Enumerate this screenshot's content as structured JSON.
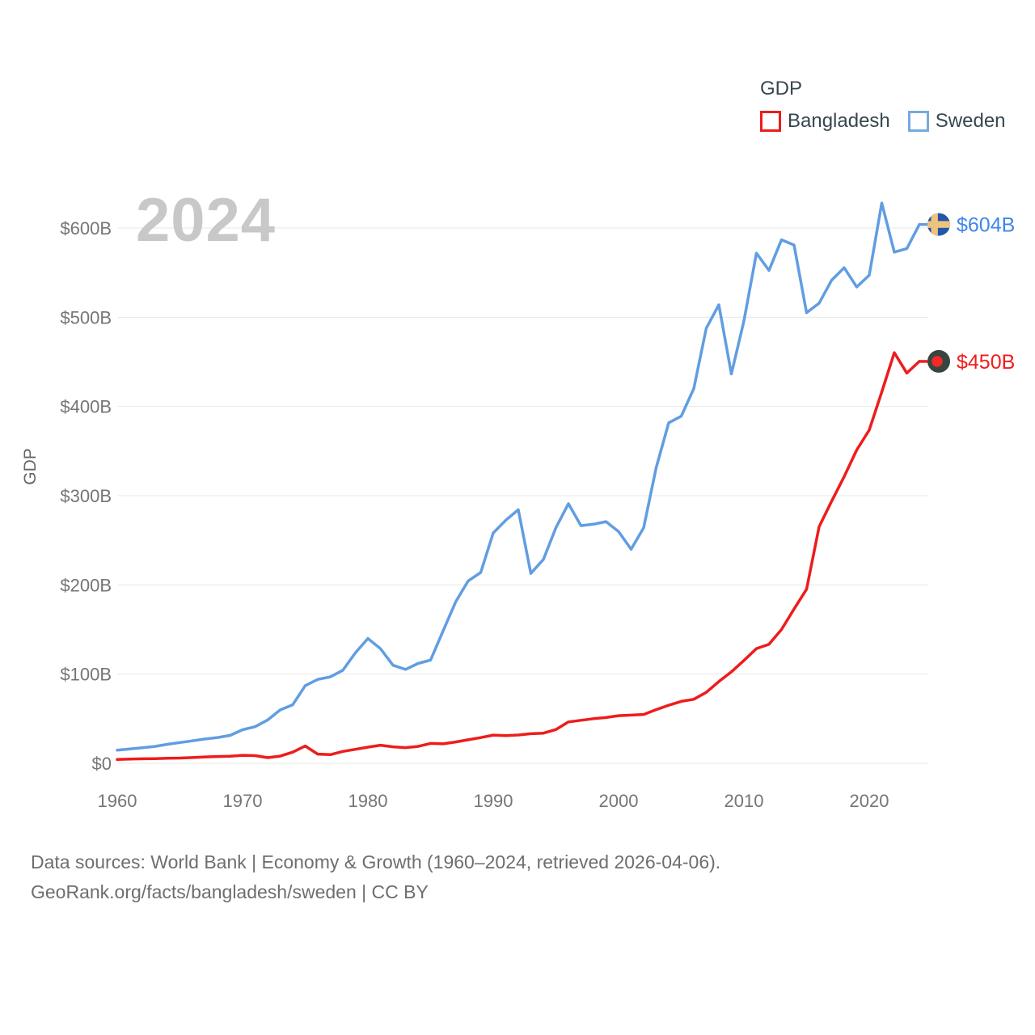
{
  "legend": {
    "title": "GDP",
    "items": [
      {
        "label": "Bangladesh",
        "color": "#ee1c1c"
      },
      {
        "label": "Sweden",
        "color": "#77a9e0"
      }
    ]
  },
  "watermark": "2024",
  "axis": {
    "y_title": "GDP",
    "y_ticks": [
      "$0",
      "$100B",
      "$200B",
      "$300B",
      "$400B",
      "$500B",
      "$600B"
    ],
    "x_ticks": [
      "1960",
      "1970",
      "1980",
      "1990",
      "2000",
      "2010",
      "2020"
    ]
  },
  "end_labels": {
    "sweden": {
      "label": "$604B",
      "color": "#3e86e8",
      "flag": "sweden-flag-icon"
    },
    "bangladesh": {
      "label": "$450B",
      "color": "#f21c1c",
      "flag": "bangladesh-flag-icon"
    }
  },
  "footer": {
    "line1": "Data sources: World Bank | Economy & Growth (1960–2024, retrieved 2026-04-06).",
    "line2": "GeoRank.org/facts/bangladesh/sweden | CC BY"
  },
  "chart_data": {
    "type": "line",
    "title": "GDP",
    "xlabel": "",
    "ylabel": "GDP",
    "grid": "horizontal",
    "legend_position": "top-right",
    "ylim": [
      0,
      640
    ],
    "y_tick_values": [
      0,
      100,
      200,
      300,
      400,
      500,
      600
    ],
    "x_tick_values": [
      1960,
      1970,
      1980,
      1990,
      2000,
      2010,
      2020
    ],
    "x": [
      1960,
      1961,
      1962,
      1963,
      1964,
      1965,
      1966,
      1967,
      1968,
      1969,
      1970,
      1971,
      1972,
      1973,
      1974,
      1975,
      1976,
      1977,
      1978,
      1979,
      1980,
      1981,
      1982,
      1983,
      1984,
      1985,
      1986,
      1987,
      1988,
      1989,
      1990,
      1991,
      1992,
      1993,
      1994,
      1995,
      1996,
      1997,
      1998,
      1999,
      2000,
      2001,
      2002,
      2003,
      2004,
      2005,
      2006,
      2007,
      2008,
      2009,
      2010,
      2011,
      2012,
      2013,
      2014,
      2015,
      2016,
      2017,
      2018,
      2019,
      2020,
      2021,
      2022,
      2023,
      2024
    ],
    "series": [
      {
        "name": "Bangladesh",
        "unit": "USD billions",
        "color": "#ee1c1c",
        "label_color": "#f21c1c",
        "values": [
          4.3,
          4.8,
          5.1,
          5.3,
          5.7,
          5.9,
          6.4,
          7.2,
          7.6,
          8.0,
          9.0,
          8.6,
          6.3,
          8.1,
          12.5,
          19.4,
          10.3,
          9.7,
          13.3,
          15.7,
          18.1,
          20.3,
          18.5,
          17.6,
          18.9,
          22.3,
          21.8,
          23.9,
          26.4,
          28.8,
          31.6,
          31.0,
          31.7,
          33.2,
          33.8,
          37.9,
          46.4,
          48.2,
          50.0,
          51.3,
          53.4,
          54.0,
          54.7,
          60.2,
          65.1,
          69.4,
          71.8,
          79.6,
          91.6,
          102.5,
          115.3,
          128.6,
          133.4,
          150.0,
          172.9,
          195.1,
          265.2,
          293.8,
          321.4,
          351.2,
          373.6,
          416.3,
          460.2,
          437.4,
          450.5
        ]
      },
      {
        "name": "Sweden",
        "unit": "USD billions",
        "color": "#619de2",
        "label_color": "#3e86e8",
        "values": [
          14.8,
          16.1,
          17.5,
          18.9,
          21.3,
          23.3,
          25.2,
          27.3,
          28.9,
          31.3,
          37.6,
          41.1,
          48.6,
          59.8,
          65.6,
          87.1,
          94.1,
          96.9,
          104.3,
          123.8,
          139.9,
          128.5,
          109.9,
          105.2,
          111.9,
          115.7,
          148.5,
          180.9,
          204.5,
          213.9,
          258.2,
          272.5,
          284.2,
          212.9,
          228.5,
          264.1,
          291.0,
          266.4,
          268.0,
          270.9,
          259.8,
          239.9,
          263.9,
          331.4,
          381.7,
          389.1,
          420.0,
          487.8,
          513.9,
          436.4,
          495.8,
          571.8,
          552.5,
          586.8,
          581.0,
          505.1,
          515.7,
          541.5,
          555.5,
          533.9,
          547.1,
          628.0,
          573.0,
          577.0,
          604.0
        ]
      }
    ]
  }
}
